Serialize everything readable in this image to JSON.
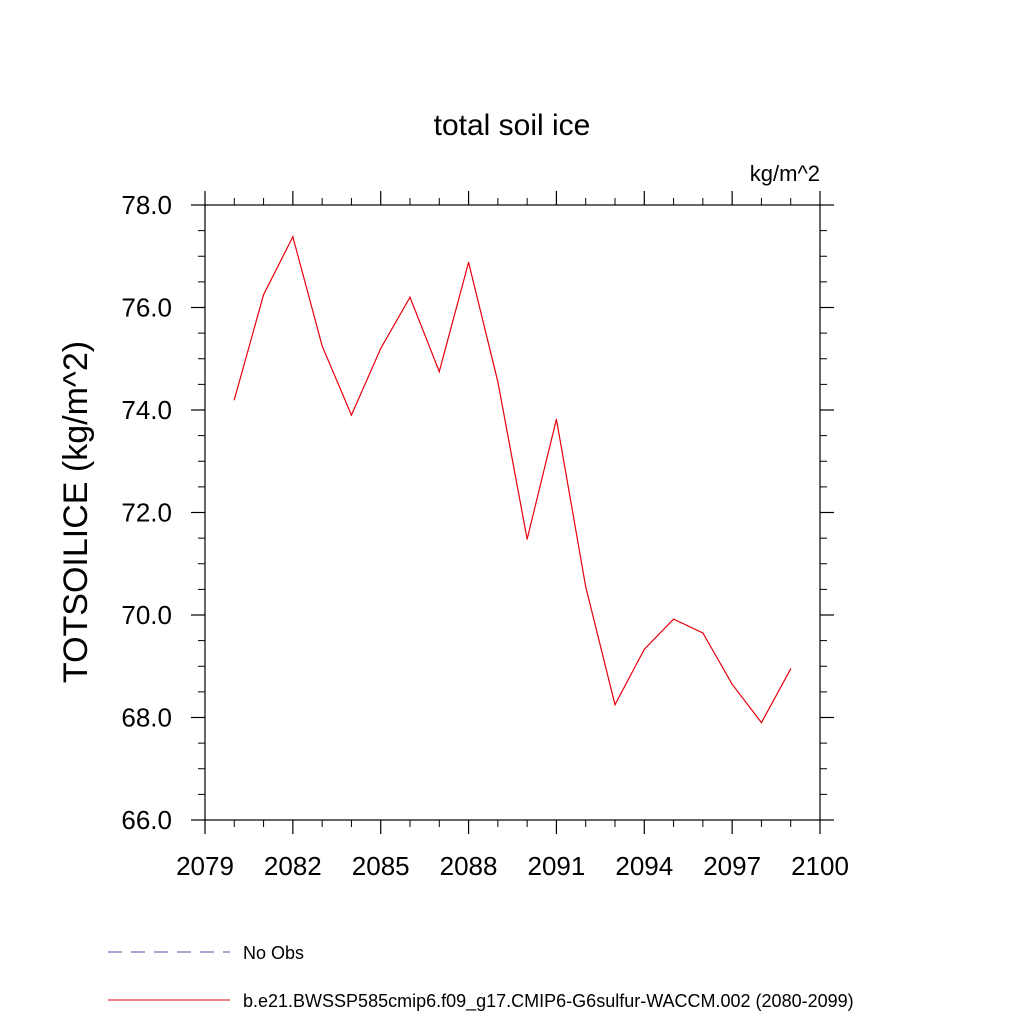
{
  "chart_data": {
    "type": "line",
    "title": "total soil ice",
    "units": "kg/m^2",
    "ylabel": "TOTSOILICE  (kg/m^2)",
    "xlabel": "",
    "xlim": [
      2079,
      2100
    ],
    "ylim": [
      66.0,
      78.0
    ],
    "xticks": [
      2079,
      2082,
      2085,
      2088,
      2091,
      2094,
      2097,
      2100
    ],
    "yticks": [
      "66.0",
      "68.0",
      "70.0",
      "72.0",
      "74.0",
      "76.0",
      "78.0"
    ],
    "grid": false,
    "legend_position": "bottom-left",
    "series": [
      {
        "name": "No Obs",
        "color": "#5a4aa8",
        "dash": "dashed",
        "x": [],
        "values": []
      },
      {
        "name": "b.e21.BWSSP585cmip6.f09_g17.CMIP6-G6sulfur-WACCM.002 (2080-2099)",
        "color": "#e8000b",
        "dash": "solid",
        "x": [
          2080,
          2081,
          2082,
          2083,
          2084,
          2085,
          2086,
          2087,
          2088,
          2089,
          2090,
          2091,
          2092,
          2093,
          2094,
          2095,
          2096,
          2097,
          2098,
          2099
        ],
        "values": [
          74.2,
          76.25,
          77.38,
          75.25,
          73.9,
          75.2,
          76.2,
          74.75,
          76.88,
          74.55,
          71.48,
          73.82,
          70.55,
          68.25,
          69.33,
          69.92,
          69.65,
          68.65,
          67.9,
          68.95
        ]
      }
    ]
  }
}
